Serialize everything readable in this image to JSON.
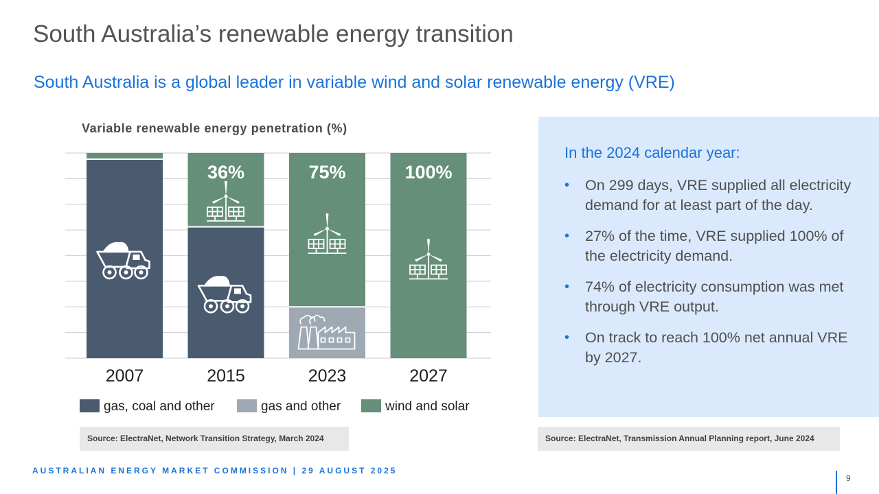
{
  "slide": {
    "title": "South Australia’s renewable energy transition",
    "subtitle": "South Australia is a global leader in variable wind and solar renewable energy (VRE)"
  },
  "chart_data": {
    "type": "bar",
    "stacked": true,
    "title": "Variable renewable energy penetration (%)",
    "categories": [
      "2007",
      "2015",
      "2023",
      "2027"
    ],
    "ylim": [
      0,
      100
    ],
    "series": [
      {
        "name": "gas, coal and other",
        "color": "#4a5b70",
        "values": [
          97,
          64,
          0,
          0
        ]
      },
      {
        "name": "gas and other",
        "color": "#9ea9b4",
        "values": [
          0,
          0,
          25,
          0
        ]
      },
      {
        "name": "wind and solar",
        "color": "#658f79",
        "values": [
          3,
          36,
          75,
          100
        ]
      }
    ],
    "data_labels": [
      "",
      "36%",
      "75%",
      "100%"
    ],
    "bar_icons": [
      [
        "mining-truck-icon"
      ],
      [
        "mining-truck-icon",
        "wind-solar-icon"
      ],
      [
        "factory-icon",
        "wind-solar-icon"
      ],
      [
        "wind-solar-icon"
      ]
    ],
    "grid": true,
    "legend_position": "bottom",
    "source": "Source:  ElectraNet, Network Transition Strategy, March 2024"
  },
  "info_panel": {
    "heading": "In the 2024 calendar year:",
    "bullets": [
      "On 299 days, VRE supplied all electricity demand for at least part of the day.",
      "27% of the time, VRE supplied 100% of the electricity demand.",
      "74% of electricity consumption was met through VRE output.",
      "On track to reach 100% net annual VRE by 2027."
    ],
    "bullet_glyph": "•",
    "source": "Source:  ElectraNet, Transmission Annual Planning report, June 2024"
  },
  "footer": {
    "organisation": "AUSTRALIAN ENERGY MARKET COMMISSION",
    "separator": "|",
    "date": "29 AUGUST 2025",
    "page_number": "9"
  },
  "colors": {
    "accent": "#1a73d9",
    "panel_background": "#dae9fb",
    "source_background": "#e8e8e8"
  }
}
